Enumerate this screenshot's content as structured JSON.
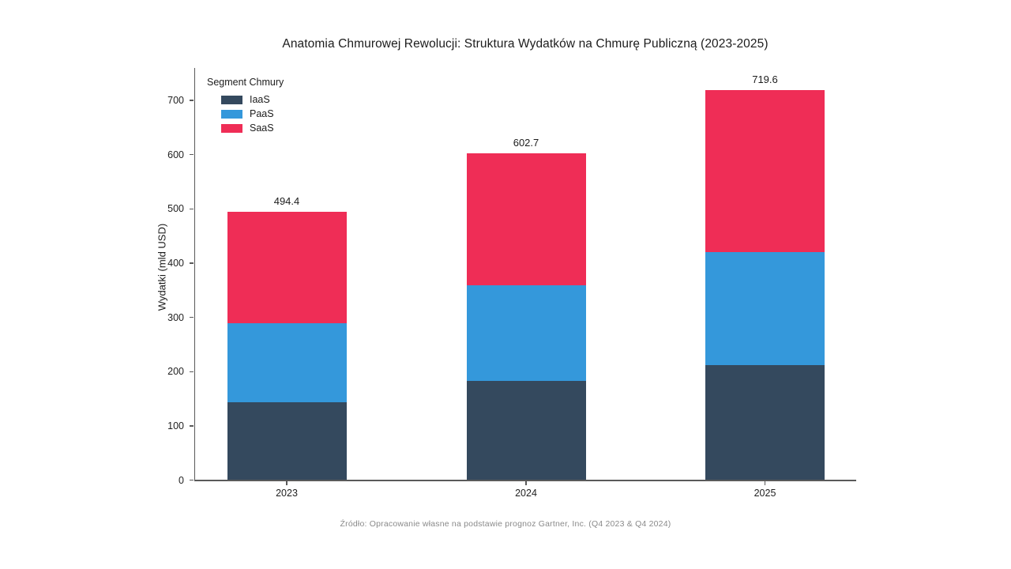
{
  "chart_data": {
    "type": "bar",
    "stacked": true,
    "title": "Anatomia Chmurowej Rewolucji: Struktura Wydatków na Chmurę Publiczną (2023-2025)",
    "ylabel": "Wydatki (mld USD)",
    "xlabel": "",
    "categories": [
      "2023",
      "2024",
      "2025"
    ],
    "series": [
      {
        "name": "IaaS",
        "color": "#34495E",
        "values": [
          143.9,
          182.2,
          211.9
        ]
      },
      {
        "name": "PaaS",
        "color": "#3498DB",
        "values": [
          145.3,
          176.5,
          208.6
        ]
      },
      {
        "name": "SaaS",
        "color": "#EF2D56",
        "values": [
          205.2,
          244.0,
          299.1
        ]
      }
    ],
    "totals": [
      "494.4",
      "602.7",
      "719.6"
    ],
    "yticks": [
      0,
      100,
      200,
      300,
      400,
      500,
      600,
      700
    ],
    "ylim": [
      0,
      760
    ],
    "grid": false,
    "legend_title": "Segment Chmury",
    "legend_position": "upper-left-inside",
    "source": "Źródło: Opracowanie własne na podstawie prognoz Gartner, Inc. (Q4 2023 & Q4 2024)"
  }
}
